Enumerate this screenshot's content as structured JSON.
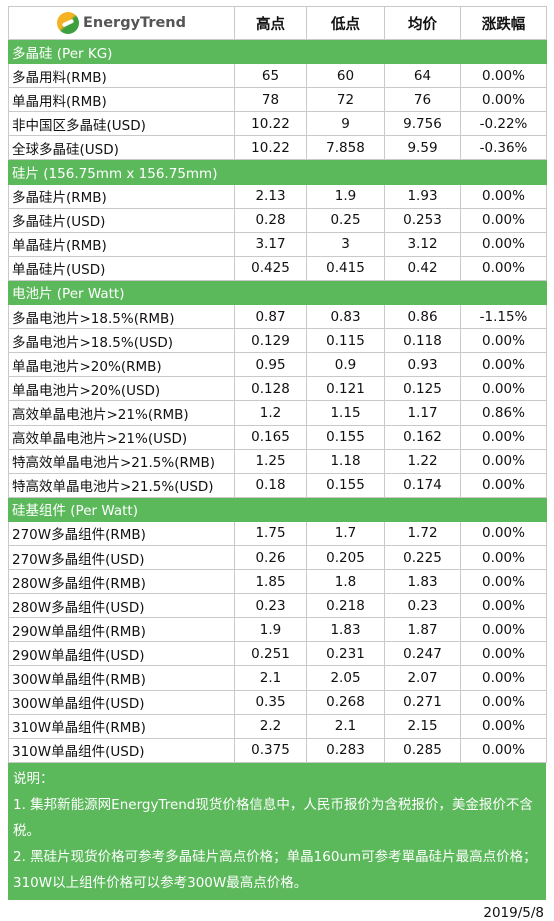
{
  "header": {
    "logo_text": "EnergyTrend",
    "col_high": "高点",
    "col_low": "低点",
    "col_avg": "均价",
    "col_change": "涨跌幅"
  },
  "sections": [
    {
      "title": "多晶硅 (Per KG)",
      "rows": [
        {
          "name": "多晶用料(RMB)",
          "high": "65",
          "low": "60",
          "avg": "64",
          "change": "0.00%"
        },
        {
          "name": "单晶用料(RMB)",
          "high": "78",
          "low": "72",
          "avg": "76",
          "change": "0.00%"
        },
        {
          "name": "非中国区多晶硅(USD)",
          "high": "10.22",
          "low": "9",
          "avg": "9.756",
          "change": "-0.22%"
        },
        {
          "name": "全球多晶硅(USD)",
          "high": "10.22",
          "low": "7.858",
          "avg": "9.59",
          "change": "-0.36%"
        }
      ]
    },
    {
      "title": "硅片 (156.75mm x 156.75mm)",
      "rows": [
        {
          "name": "多晶硅片(RMB)",
          "high": "2.13",
          "low": "1.9",
          "avg": "1.93",
          "change": "0.00%"
        },
        {
          "name": "多晶硅片(USD)",
          "high": "0.28",
          "low": "0.25",
          "avg": "0.253",
          "change": "0.00%"
        },
        {
          "name": "单晶硅片(RMB)",
          "high": "3.17",
          "low": "3",
          "avg": "3.12",
          "change": "0.00%"
        },
        {
          "name": "单晶硅片(USD)",
          "high": "0.425",
          "low": "0.415",
          "avg": "0.42",
          "change": "0.00%"
        }
      ]
    },
    {
      "title": "电池片 (Per Watt)",
      "rows": [
        {
          "name": "多晶电池片>18.5%(RMB)",
          "high": "0.87",
          "low": "0.83",
          "avg": "0.86",
          "change": "-1.15%"
        },
        {
          "name": "多晶电池片>18.5%(USD)",
          "high": "0.129",
          "low": "0.115",
          "avg": "0.118",
          "change": "0.00%"
        },
        {
          "name": "单晶电池片>20%(RMB)",
          "high": "0.95",
          "low": "0.9",
          "avg": "0.93",
          "change": "0.00%"
        },
        {
          "name": "单晶电池片>20%(USD)",
          "high": "0.128",
          "low": "0.121",
          "avg": "0.125",
          "change": "0.00%"
        },
        {
          "name": "高效单晶电池片>21%(RMB)",
          "high": "1.2",
          "low": "1.15",
          "avg": "1.17",
          "change": "0.86%"
        },
        {
          "name": "高效单晶电池片>21%(USD)",
          "high": "0.165",
          "low": "0.155",
          "avg": "0.162",
          "change": "0.00%"
        },
        {
          "name": "特高效单晶电池片>21.5%(RMB)",
          "high": "1.25",
          "low": "1.18",
          "avg": "1.22",
          "change": "0.00%"
        },
        {
          "name": "特高效单晶电池片>21.5%(USD)",
          "high": "0.18",
          "low": "0.155",
          "avg": "0.174",
          "change": "0.00%"
        }
      ]
    },
    {
      "title": "硅基组件 (Per Watt)",
      "rows": [
        {
          "name": "270W多晶组件(RMB)",
          "high": "1.75",
          "low": "1.7",
          "avg": "1.72",
          "change": "0.00%"
        },
        {
          "name": "270W多晶组件(USD)",
          "high": "0.26",
          "low": "0.205",
          "avg": "0.225",
          "change": "0.00%"
        },
        {
          "name": "280W多晶组件(RMB)",
          "high": "1.85",
          "low": "1.8",
          "avg": "1.83",
          "change": "0.00%"
        },
        {
          "name": "280W多晶组件(USD)",
          "high": "0.23",
          "low": "0.218",
          "avg": "0.23",
          "change": "0.00%"
        },
        {
          "name": "290W单晶组件(RMB)",
          "high": "1.9",
          "low": "1.83",
          "avg": "1.87",
          "change": "0.00%"
        },
        {
          "name": "290W单晶组件(USD)",
          "high": "0.251",
          "low": "0.231",
          "avg": "0.247",
          "change": "0.00%"
        },
        {
          "name": "300W单晶组件(RMB)",
          "high": "2.1",
          "low": "2.05",
          "avg": "2.07",
          "change": "0.00%"
        },
        {
          "name": "300W单晶组件(USD)",
          "high": "0.35",
          "low": "0.268",
          "avg": "0.271",
          "change": "0.00%"
        },
        {
          "name": "310W单晶组件(RMB)",
          "high": "2.2",
          "low": "2.1",
          "avg": "2.15",
          "change": "0.00%"
        },
        {
          "name": "310W单晶组件(USD)",
          "high": "0.375",
          "low": "0.283",
          "avg": "0.285",
          "change": "0.00%"
        }
      ]
    }
  ],
  "notes": {
    "title": "说明：",
    "line1": "1. 集邦新能源网EnergyTrend现货价格信息中，人民币报价为含税报价，美金报价不含税。",
    "line2": "2. 黑硅片现货价格可参考多晶硅片高点价格；单晶160um可参考單晶硅片最高点价格；310W以上组件价格可以参考300W最高点价格。"
  },
  "date": "2019/5/8"
}
